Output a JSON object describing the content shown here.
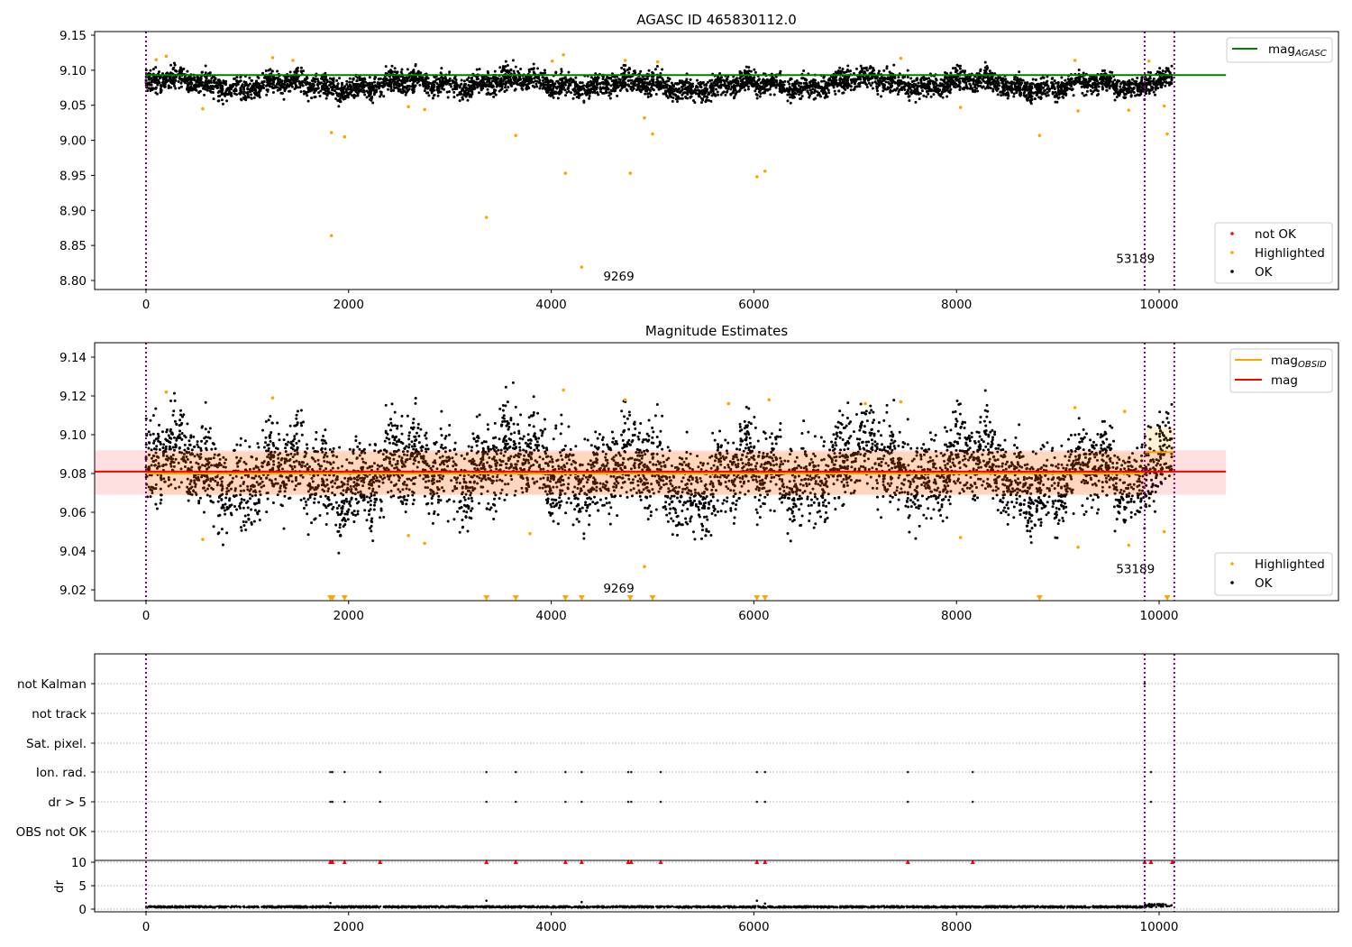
{
  "chart_data": [
    {
      "type": "scatter",
      "title": "AGASC ID 465830112.0",
      "xlim": [
        -500,
        11700
      ],
      "ylim": [
        8.79,
        9.155
      ],
      "xticks": [
        0,
        2000,
        4000,
        6000,
        8000,
        10000
      ],
      "yticks": [
        9.15,
        9.1,
        9.05,
        9.0,
        8.95,
        8.9,
        8.85,
        8.8
      ],
      "ytick_labels": [
        "9.15",
        "9.10",
        "9.05",
        "9.00",
        "8.95",
        "8.90",
        "8.85",
        "8.80"
      ],
      "mag_agasc": 9.093,
      "mag_agasc_xrange": [
        0,
        10660
      ],
      "obsid_boundaries": [
        0,
        9857,
        10150
      ],
      "annotations": [
        {
          "text": "9269",
          "x": 4800,
          "y": 8.8
        },
        {
          "text": "53189",
          "x": 9900,
          "y": 8.825
        }
      ],
      "ok_points": {
        "n": 5000,
        "xrange": [
          0,
          10130
        ],
        "center": 9.08,
        "noise": 0.009
      },
      "highlighted": [
        [
          1830,
          9.011
        ],
        [
          1830,
          8.864
        ],
        [
          1960,
          9.005
        ],
        [
          3360,
          8.89
        ],
        [
          3650,
          9.007
        ],
        [
          4140,
          8.953
        ],
        [
          4300,
          8.819
        ],
        [
          4780,
          8.953
        ],
        [
          4920,
          9.032
        ],
        [
          5000,
          9.009
        ],
        [
          6030,
          8.948
        ],
        [
          6110,
          8.956
        ],
        [
          8820,
          9.007
        ],
        [
          10080,
          9.009
        ],
        [
          10050,
          9.049
        ],
        [
          560,
          9.045
        ],
        [
          2590,
          9.048
        ],
        [
          2750,
          9.044
        ],
        [
          8040,
          9.047
        ],
        [
          9200,
          9.042
        ],
        [
          9700,
          9.043
        ],
        [
          100,
          9.115
        ],
        [
          200,
          9.12
        ],
        [
          1250,
          9.118
        ],
        [
          1450,
          9.114
        ],
        [
          4120,
          9.122
        ],
        [
          4010,
          9.113
        ],
        [
          4730,
          9.114
        ],
        [
          5050,
          9.112
        ],
        [
          7450,
          9.117
        ],
        [
          9170,
          9.114
        ],
        [
          9900,
          9.113
        ]
      ],
      "legend_top": "mag",
      "legend_top_sub": "AGASC",
      "legend": [
        "not OK",
        "Highlighted",
        "OK"
      ],
      "colors": {
        "ok": "#000000",
        "highlighted": "#ffa500",
        "not_ok": "#ff0000",
        "agasc": "#008000",
        "obsid": "#800080"
      }
    },
    {
      "type": "scatter",
      "title": "Magnitude Estimates",
      "ylim": [
        9.0145,
        9.147
      ],
      "yticks": [
        9.14,
        9.12,
        9.1,
        9.08,
        9.06,
        9.04,
        9.02
      ],
      "ytick_labels": [
        "9.14",
        "9.12",
        "9.10",
        "9.08",
        "9.06",
        "9.04",
        "9.02"
      ],
      "mag": 9.081,
      "mag_band": [
        9.069,
        9.092
      ],
      "mag_xrange": [
        -500,
        10660
      ],
      "mag_obsid": [
        {
          "x": [
            0,
            9857
          ],
          "v": 9.08,
          "band": [
            9.069,
            9.091
          ]
        },
        {
          "x": [
            9857,
            10150
          ],
          "v": 9.091,
          "band": [
            9.078,
            9.104
          ]
        }
      ],
      "annotations": [
        {
          "text": "9269",
          "x": 4800,
          "y": 9.0185
        },
        {
          "text": "53189",
          "x": 9900,
          "y": 9.0285
        }
      ],
      "ok_points": {
        "n": 5000,
        "center": 9.081,
        "noise": 0.011
      },
      "highlighted": [
        [
          560,
          9.046
        ],
        [
          2590,
          9.048
        ],
        [
          2750,
          9.044
        ],
        [
          3790,
          9.049
        ],
        [
          4920,
          9.032
        ],
        [
          8040,
          9.047
        ],
        [
          9200,
          9.042
        ],
        [
          9700,
          9.043
        ],
        [
          10050,
          9.05
        ],
        [
          200,
          9.122
        ],
        [
          1250,
          9.119
        ],
        [
          4120,
          9.123
        ],
        [
          4730,
          9.118
        ],
        [
          5750,
          9.116
        ],
        [
          6150,
          9.118
        ],
        [
          7450,
          9.117
        ],
        [
          7100,
          9.116
        ],
        [
          9170,
          9.114
        ],
        [
          9660,
          9.112
        ]
      ],
      "below_range": [
        1820,
        1840,
        1960,
        3360,
        3650,
        4140,
        4300,
        4780,
        5000,
        6030,
        6110,
        8820,
        10080
      ],
      "legend_lines": [
        {
          "label": "mag",
          "sub": "OBSID",
          "color": "#ffa500"
        },
        {
          "label": "mag",
          "sub": "",
          "color": "#ff0000"
        }
      ],
      "legend": [
        "Highlighted",
        "OK"
      ]
    },
    {
      "type": "scatter",
      "categories": [
        "not Kalman",
        "not track",
        "Sat. pixel.",
        "Ion. rad.",
        "dr > 5",
        "OBS not OK"
      ],
      "flag_x": {
        "Ion. rad.": [
          1820,
          1840,
          1960,
          2310,
          3360,
          3650,
          4140,
          4300,
          4760,
          4790,
          5080,
          6030,
          6110,
          7520,
          8160,
          9920
        ],
        "dr > 5": [
          1820,
          1840,
          1960,
          2310,
          3360,
          3650,
          4140,
          4300,
          4760,
          4790,
          5080,
          6030,
          6110,
          7520,
          8160,
          9920
        ],
        "not Kalman": [
          9857
        ]
      },
      "dr_ylabel": "dr",
      "dr_yticks": [
        10,
        5,
        0
      ],
      "dr_ytick_labels": [
        "10",
        "5",
        "0"
      ],
      "dr_clipped_x": [
        1820,
        1840,
        1960,
        2310,
        3360,
        3650,
        4140,
        4300,
        4760,
        4790,
        5080,
        6030,
        6110,
        7520,
        8160,
        9857,
        9920,
        10130
      ],
      "dr_spikes": [
        [
          1820,
          1.3
        ],
        [
          3360,
          1.8
        ],
        [
          4300,
          1.5
        ],
        [
          6030,
          1.8
        ],
        [
          6110,
          1.2
        ]
      ]
    }
  ],
  "xtick_labels": [
    "0",
    "2000",
    "4000",
    "6000",
    "8000",
    "10000"
  ]
}
